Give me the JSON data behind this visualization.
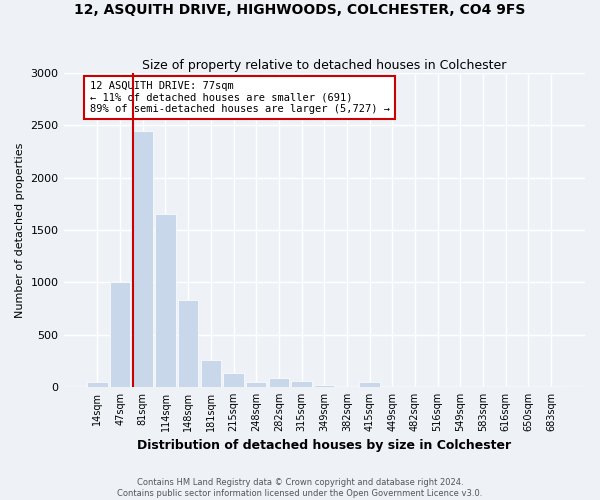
{
  "title": "12, ASQUITH DRIVE, HIGHWOODS, COLCHESTER, CO4 9FS",
  "subtitle": "Size of property relative to detached houses in Colchester",
  "xlabel": "Distribution of detached houses by size in Colchester",
  "ylabel": "Number of detached properties",
  "footer_line1": "Contains HM Land Registry data © Crown copyright and database right 2024.",
  "footer_line2": "Contains public sector information licensed under the Open Government Licence v3.0.",
  "annotation_title": "12 ASQUITH DRIVE: 77sqm",
  "annotation_line1": "← 11% of detached houses are smaller (691)",
  "annotation_line2": "89% of semi-detached houses are larger (5,727) →",
  "bar_labels": [
    "14sqm",
    "47sqm",
    "81sqm",
    "114sqm",
    "148sqm",
    "181sqm",
    "215sqm",
    "248sqm",
    "282sqm",
    "315sqm",
    "349sqm",
    "382sqm",
    "415sqm",
    "449sqm",
    "482sqm",
    "516sqm",
    "549sqm",
    "583sqm",
    "616sqm",
    "650sqm",
    "683sqm"
  ],
  "bar_values": [
    50,
    1000,
    2450,
    1650,
    830,
    260,
    130,
    50,
    90,
    60,
    20,
    5,
    50,
    10,
    5,
    5,
    5,
    5,
    5,
    5,
    5
  ],
  "bar_color": "#c8d8ea",
  "vline_color": "#cc0000",
  "vline_x_index": 1.55,
  "annotation_box_edgecolor": "#cc0000",
  "bg_color": "#eef2f7",
  "plot_bg_color": "#eef2f7",
  "grid_color": "#ffffff",
  "ylim": [
    0,
    3000
  ],
  "yticks": [
    0,
    500,
    1000,
    1500,
    2000,
    2500,
    3000
  ]
}
